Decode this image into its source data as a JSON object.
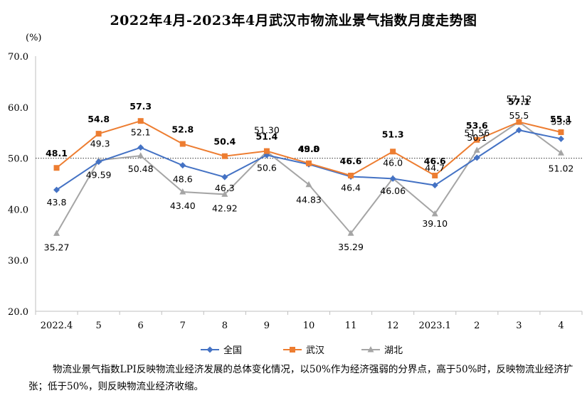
{
  "chart_data": {
    "type": "line",
    "title": "2022年4月-2023年4月武汉市物流业景气指数月度走势图",
    "y_unit": "(%)",
    "ylim": [
      20,
      70
    ],
    "yticks": [
      "20.0",
      "30.0",
      "40.0",
      "50.0",
      "60.0",
      "70.0"
    ],
    "reference_line": 50,
    "categories": [
      "2022.4",
      "5",
      "6",
      "7",
      "8",
      "9",
      "10",
      "11",
      "12",
      "2023.1",
      "2",
      "3",
      "4"
    ],
    "legend_position": "bottom",
    "series": [
      {
        "name": "全国",
        "color": "#4472C4",
        "marker": "diamond",
        "values": [
          43.8,
          49.3,
          52.1,
          48.6,
          46.3,
          50.6,
          48.8,
          46.4,
          46.0,
          44.7,
          50.1,
          55.5,
          53.8
        ],
        "labels": [
          "43.8",
          "49.3",
          "52.1",
          "48.6",
          "46.3",
          "50.6",
          "48.8",
          "46.4",
          "46.0",
          "44.7",
          "50.1",
          "55.5",
          "53.8"
        ]
      },
      {
        "name": "武汉",
        "color": "#ED7D31",
        "marker": "square",
        "values": [
          48.1,
          54.8,
          57.3,
          52.8,
          50.4,
          51.4,
          49.0,
          46.6,
          51.3,
          46.6,
          53.6,
          57.1,
          55.1
        ],
        "labels": [
          "48.1",
          "54.8",
          "57.3",
          "52.8",
          "50.4",
          "51.4",
          "49.0",
          "46.6",
          "51.3",
          "46.6",
          "53.6",
          "57.1",
          "55.1"
        ]
      },
      {
        "name": "湖北",
        "color": "#A5A5A5",
        "marker": "triangle",
        "values": [
          35.27,
          49.59,
          50.48,
          43.4,
          42.92,
          51.3,
          44.83,
          35.29,
          46.06,
          39.1,
          51.56,
          57.12,
          51.02
        ],
        "labels": [
          "35.27",
          "49.59",
          "50.48",
          "43.40",
          "42.92",
          "51.30",
          "44.83",
          "35.29",
          "46.06",
          "39.10",
          "51.56",
          "57.12",
          "51.02"
        ]
      }
    ],
    "note": "物流业景气指数LPI反映物流业经济发展的总体变化情况，以50%作为经济强弱的分界点，高于50%时，反映物流业经济扩张；低于50%，则反映物流业经济收缩。"
  }
}
